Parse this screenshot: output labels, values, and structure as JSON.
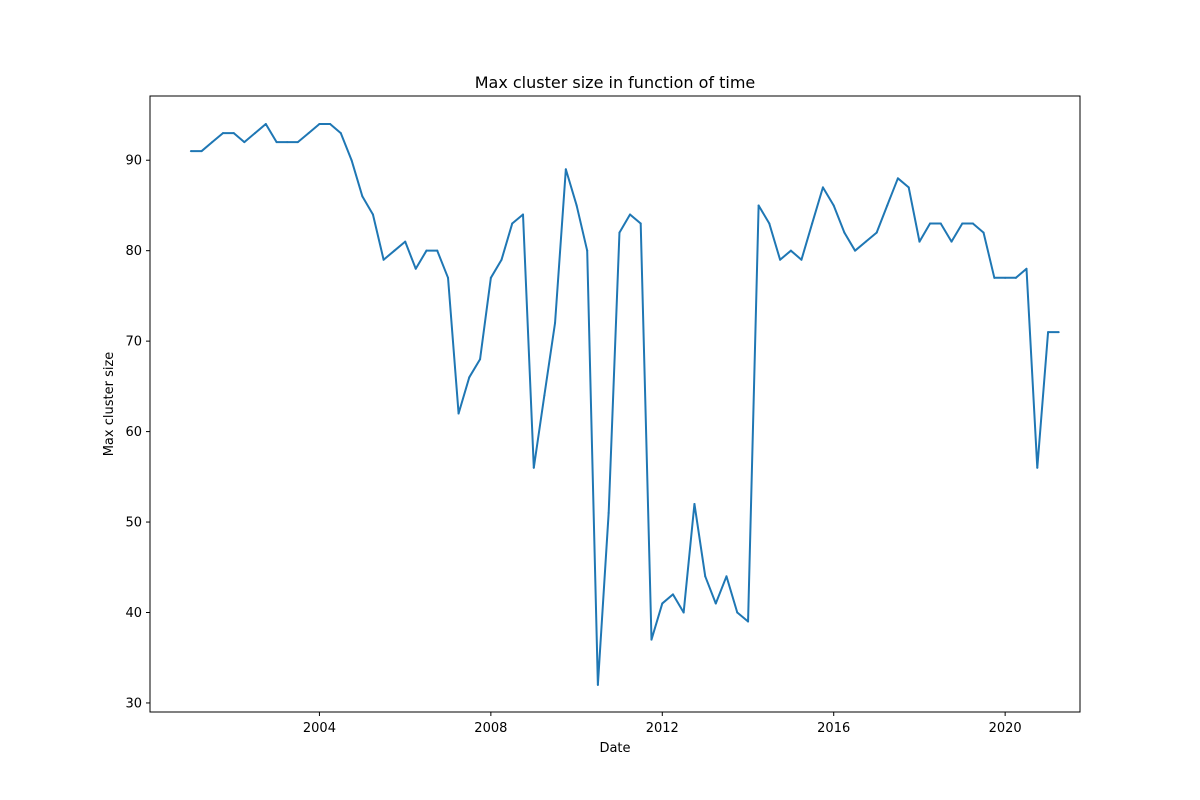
{
  "chart_data": {
    "type": "line",
    "title": "Max cluster size in function of time",
    "xlabel": "Date",
    "ylabel": "Max cluster size",
    "x_ticks": [
      "2004",
      "2008",
      "2012",
      "2016",
      "2020"
    ],
    "y_ticks": [
      30,
      40,
      50,
      60,
      70,
      80,
      90
    ],
    "xlim": [
      "2000-01-18",
      "2021-09-30"
    ],
    "ylim": [
      29.0,
      97.1
    ],
    "grid": false,
    "series": [
      {
        "color": "#1f77b4",
        "points": [
          [
            "2001-01-01",
            91
          ],
          [
            "2001-04-01",
            91
          ],
          [
            "2001-07-01",
            92
          ],
          [
            "2001-10-01",
            93
          ],
          [
            "2002-01-01",
            93
          ],
          [
            "2002-04-01",
            92
          ],
          [
            "2002-07-01",
            93
          ],
          [
            "2002-10-01",
            94
          ],
          [
            "2003-01-01",
            92
          ],
          [
            "2003-04-01",
            92
          ],
          [
            "2003-07-01",
            92
          ],
          [
            "2003-10-01",
            93
          ],
          [
            "2004-01-01",
            94
          ],
          [
            "2004-04-01",
            94
          ],
          [
            "2004-07-01",
            93
          ],
          [
            "2004-10-01",
            90
          ],
          [
            "2005-01-01",
            86
          ],
          [
            "2005-04-01",
            84
          ],
          [
            "2005-07-01",
            79
          ],
          [
            "2005-10-01",
            80
          ],
          [
            "2006-01-01",
            81
          ],
          [
            "2006-04-01",
            78
          ],
          [
            "2006-07-01",
            80
          ],
          [
            "2006-10-01",
            80
          ],
          [
            "2007-01-01",
            77
          ],
          [
            "2007-04-01",
            62
          ],
          [
            "2007-07-01",
            66
          ],
          [
            "2007-10-01",
            68
          ],
          [
            "2008-01-01",
            77
          ],
          [
            "2008-04-01",
            79
          ],
          [
            "2008-07-01",
            83
          ],
          [
            "2008-10-01",
            84
          ],
          [
            "2009-01-01",
            56
          ],
          [
            "2009-04-01",
            64
          ],
          [
            "2009-07-01",
            72
          ],
          [
            "2009-10-01",
            89
          ],
          [
            "2010-01-01",
            85
          ],
          [
            "2010-04-01",
            80
          ],
          [
            "2010-07-01",
            32
          ],
          [
            "2010-10-01",
            51
          ],
          [
            "2011-01-01",
            82
          ],
          [
            "2011-04-01",
            84
          ],
          [
            "2011-07-01",
            83
          ],
          [
            "2011-10-01",
            37
          ],
          [
            "2012-01-01",
            41
          ],
          [
            "2012-04-01",
            42
          ],
          [
            "2012-07-01",
            40
          ],
          [
            "2012-10-01",
            52
          ],
          [
            "2013-01-01",
            44
          ],
          [
            "2013-04-01",
            41
          ],
          [
            "2013-07-01",
            44
          ],
          [
            "2013-10-01",
            40
          ],
          [
            "2014-01-01",
            39
          ],
          [
            "2014-04-01",
            85
          ],
          [
            "2014-07-01",
            83
          ],
          [
            "2014-10-01",
            79
          ],
          [
            "2015-01-01",
            80
          ],
          [
            "2015-04-01",
            79
          ],
          [
            "2015-07-01",
            83
          ],
          [
            "2015-10-01",
            87
          ],
          [
            "2016-01-01",
            85
          ],
          [
            "2016-04-01",
            82
          ],
          [
            "2016-07-01",
            80
          ],
          [
            "2016-10-01",
            81
          ],
          [
            "2017-01-01",
            82
          ],
          [
            "2017-04-01",
            85
          ],
          [
            "2017-07-01",
            88
          ],
          [
            "2017-10-01",
            87
          ],
          [
            "2018-01-01",
            81
          ],
          [
            "2018-04-01",
            83
          ],
          [
            "2018-07-01",
            83
          ],
          [
            "2018-10-01",
            81
          ],
          [
            "2019-01-01",
            83
          ],
          [
            "2019-04-01",
            83
          ],
          [
            "2019-07-01",
            82
          ],
          [
            "2019-10-01",
            77
          ],
          [
            "2020-01-01",
            77
          ],
          [
            "2020-04-01",
            77
          ],
          [
            "2020-07-01",
            78
          ],
          [
            "2020-10-01",
            56
          ],
          [
            "2021-01-01",
            71
          ],
          [
            "2021-04-01",
            71
          ]
        ]
      }
    ]
  }
}
